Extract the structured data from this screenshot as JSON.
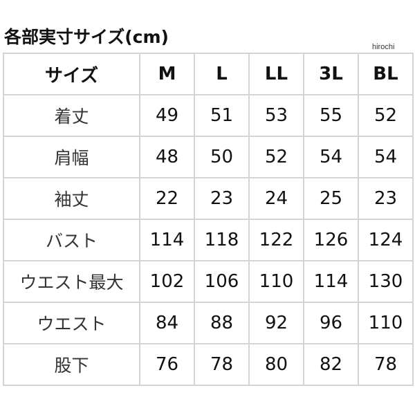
{
  "title": "各部実寸サイズ(cm)",
  "watermark": "hirochi",
  "table": {
    "header": [
      "サイズ",
      "M",
      "L",
      "LL",
      "3L",
      "BL"
    ],
    "rows": [
      {
        "label": "着丈",
        "values": [
          "49",
          "51",
          "53",
          "55",
          "52"
        ]
      },
      {
        "label": "肩幅",
        "values": [
          "48",
          "50",
          "52",
          "54",
          "54"
        ]
      },
      {
        "label": "袖丈",
        "values": [
          "22",
          "23",
          "24",
          "25",
          "23"
        ]
      },
      {
        "label": "バスト",
        "values": [
          "114",
          "118",
          "122",
          "126",
          "124"
        ]
      },
      {
        "label": "ウエスト最大",
        "values": [
          "102",
          "106",
          "110",
          "114",
          "130"
        ]
      },
      {
        "label": "ウエスト",
        "values": [
          "84",
          "88",
          "92",
          "96",
          "110"
        ]
      },
      {
        "label": "股下",
        "values": [
          "76",
          "78",
          "80",
          "82",
          "78"
        ]
      }
    ]
  }
}
